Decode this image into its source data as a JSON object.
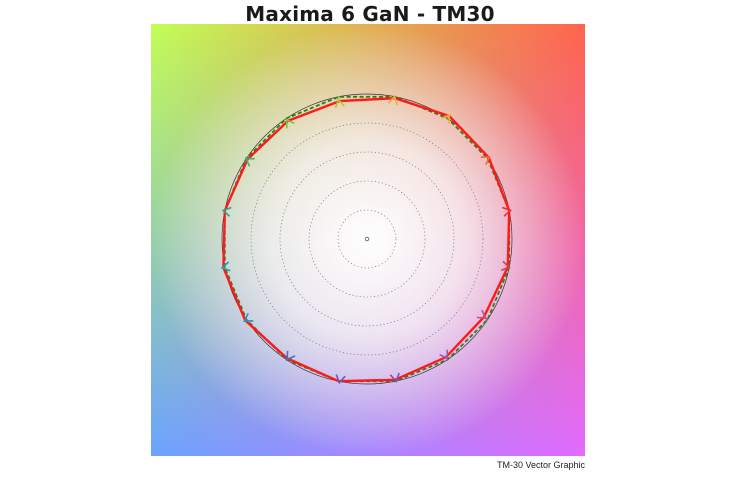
{
  "title": "Maxima 6 GaN - TM30",
  "caption": "TM-30 Vector Graphic",
  "chart_data": {
    "type": "tm30-color-vector",
    "hue_bins": 16,
    "reference_radius": 1.0,
    "grid_rings": [
      0.2,
      0.4,
      0.6,
      0.8
    ],
    "test_radii": [
      1.0,
      1.01,
      1.02,
      0.99,
      0.97,
      0.98,
      0.99,
      1.0,
      1.01,
      1.01,
      0.99,
      1.0,
      0.99,
      0.98,
      0.97,
      0.99
    ],
    "background": {
      "top_left": "#c2fe55",
      "top_right": "#ff634d",
      "bottom_left": "#6ba3ff",
      "bottom_right": "#e26bff",
      "center": "#ffffff"
    },
    "series": [
      {
        "name": "",
        "role": "reference",
        "color": "#333333",
        "style": "solid"
      },
      {
        "name": "",
        "role": "test",
        "color": "#ff1a1a",
        "style": "solid"
      },
      {
        "name": "",
        "role": "reference-polygon",
        "color": "#2e7d1b",
        "style": "dashed"
      }
    ],
    "arrow_colors": [
      "#e8312a",
      "#ef6a3a",
      "#f4a93b",
      "#e0b838",
      "#b7c43a",
      "#7fbf3f",
      "#3fb06a",
      "#28a88a",
      "#23a1a0",
      "#2e8fc0",
      "#3a73c7",
      "#5a5fc0",
      "#7a54b8",
      "#985bb4",
      "#b9538e",
      "#d43d58"
    ]
  }
}
